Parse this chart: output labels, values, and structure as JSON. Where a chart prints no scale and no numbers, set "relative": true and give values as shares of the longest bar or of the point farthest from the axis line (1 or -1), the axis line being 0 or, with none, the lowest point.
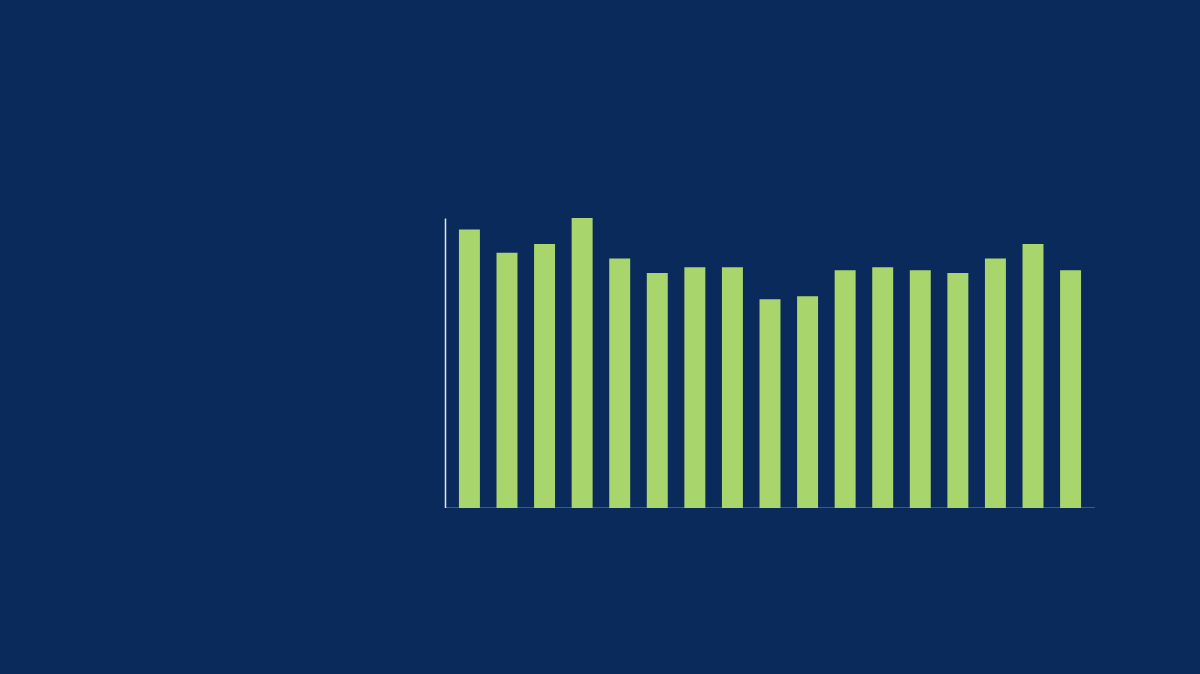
{
  "chart_data": {
    "type": "bar",
    "relative": true,
    "categories": [
      null,
      null,
      null,
      null,
      null,
      null,
      null,
      null,
      null,
      null,
      null,
      null,
      null,
      null,
      null,
      null,
      null
    ],
    "values": [
      0.96,
      0.88,
      0.91,
      1,
      0.86,
      0.81,
      0.83,
      0.83,
      0.72,
      0.73,
      0.82,
      0.83,
      0.82,
      0.81,
      0.86,
      0.91,
      0.82
    ],
    "color": "#a8d66c"
  }
}
